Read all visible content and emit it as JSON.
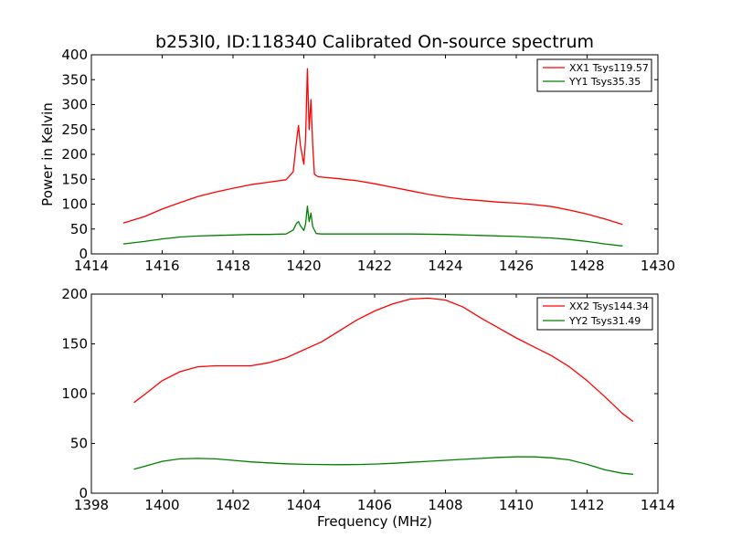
{
  "chart_data": [
    {
      "type": "line",
      "title": "b253l0, ID:118340 Calibrated On-source spectrum",
      "xlabel": "",
      "ylabel": "Power in Kelvin",
      "xlim": [
        1414,
        1430
      ],
      "ylim": [
        0,
        400
      ],
      "xticks": [
        "1414",
        "1416",
        "1418",
        "1420",
        "1422",
        "1424",
        "1426",
        "1428",
        "1430"
      ],
      "yticks": [
        "0",
        "50",
        "100",
        "150",
        "200",
        "250",
        "300",
        "350",
        "400"
      ],
      "legend_position": "top-right",
      "series": [
        {
          "name": "XX1 Tsys119.57",
          "color": "#ff0000",
          "points": [
            [
              1414.9,
              62
            ],
            [
              1415.5,
              75
            ],
            [
              1416,
              90
            ],
            [
              1416.5,
              103
            ],
            [
              1417,
              115
            ],
            [
              1417.5,
              124
            ],
            [
              1418,
              132
            ],
            [
              1418.5,
              139
            ],
            [
              1419,
              144
            ],
            [
              1419.5,
              149
            ],
            [
              1419.7,
              165
            ],
            [
              1419.8,
              230
            ],
            [
              1419.85,
              258
            ],
            [
              1419.9,
              220
            ],
            [
              1420.0,
              180
            ],
            [
              1420.05,
              230
            ],
            [
              1420.1,
              372
            ],
            [
              1420.15,
              250
            ],
            [
              1420.2,
              310
            ],
            [
              1420.25,
              220
            ],
            [
              1420.3,
              160
            ],
            [
              1420.4,
              155
            ],
            [
              1421,
              151
            ],
            [
              1421.5,
              147
            ],
            [
              1422,
              141
            ],
            [
              1422.5,
              134
            ],
            [
              1423,
              127
            ],
            [
              1423.5,
              120
            ],
            [
              1424,
              114
            ],
            [
              1424.5,
              110
            ],
            [
              1425,
              107
            ],
            [
              1425.5,
              104
            ],
            [
              1426,
              102
            ],
            [
              1426.5,
              99
            ],
            [
              1427,
              95
            ],
            [
              1427.5,
              88
            ],
            [
              1428,
              80
            ],
            [
              1428.5,
              70
            ],
            [
              1429,
              59
            ]
          ]
        },
        {
          "name": "YY1 Tsys35.35",
          "color": "#008000",
          "points": [
            [
              1414.9,
              20
            ],
            [
              1415.5,
              25
            ],
            [
              1416,
              30
            ],
            [
              1416.5,
              34
            ],
            [
              1417,
              36
            ],
            [
              1417.5,
              37
            ],
            [
              1418,
              38
            ],
            [
              1418.5,
              39
            ],
            [
              1419,
              39
            ],
            [
              1419.5,
              40
            ],
            [
              1419.7,
              48
            ],
            [
              1419.8,
              62
            ],
            [
              1419.85,
              65
            ],
            [
              1419.9,
              57
            ],
            [
              1420.0,
              47
            ],
            [
              1420.05,
              60
            ],
            [
              1420.1,
              96
            ],
            [
              1420.15,
              65
            ],
            [
              1420.2,
              82
            ],
            [
              1420.25,
              55
            ],
            [
              1420.35,
              41
            ],
            [
              1420.5,
              40
            ],
            [
              1421,
              40
            ],
            [
              1422,
              40
            ],
            [
              1423,
              40
            ],
            [
              1424,
              39
            ],
            [
              1425,
              37
            ],
            [
              1426,
              35
            ],
            [
              1427,
              32
            ],
            [
              1427.5,
              29
            ],
            [
              1428,
              25
            ],
            [
              1428.5,
              20
            ],
            [
              1429,
              16
            ]
          ]
        }
      ]
    },
    {
      "type": "line",
      "title": "",
      "xlabel": "Frequency (MHz)",
      "ylabel": "",
      "xlim": [
        1398,
        1414
      ],
      "ylim": [
        0,
        200
      ],
      "xticks": [
        "1398",
        "1400",
        "1402",
        "1404",
        "1406",
        "1408",
        "1410",
        "1412",
        "1414"
      ],
      "yticks": [
        "0",
        "50",
        "100",
        "150",
        "200"
      ],
      "legend_position": "top-right",
      "series": [
        {
          "name": "XX2 Tsys144.34",
          "color": "#ff0000",
          "points": [
            [
              1399.2,
              91
            ],
            [
              1399.5,
              99
            ],
            [
              1400,
              113
            ],
            [
              1400.5,
              122
            ],
            [
              1401,
              127
            ],
            [
              1401.5,
              128
            ],
            [
              1402,
              128
            ],
            [
              1402.5,
              128
            ],
            [
              1403,
              131
            ],
            [
              1403.5,
              136
            ],
            [
              1404,
              144
            ],
            [
              1404.5,
              152
            ],
            [
              1405,
              163
            ],
            [
              1405.5,
              174
            ],
            [
              1406,
              183
            ],
            [
              1406.5,
              190
            ],
            [
              1407,
              195
            ],
            [
              1407.5,
              196
            ],
            [
              1408,
              194
            ],
            [
              1408.5,
              187
            ],
            [
              1409,
              176
            ],
            [
              1409.5,
              166
            ],
            [
              1410,
              156
            ],
            [
              1410.5,
              147
            ],
            [
              1411,
              138
            ],
            [
              1411.5,
              127
            ],
            [
              1412,
              113
            ],
            [
              1412.5,
              97
            ],
            [
              1413,
              80
            ],
            [
              1413.3,
              72
            ]
          ]
        },
        {
          "name": "YY2 Tsys31.49",
          "color": "#008000",
          "points": [
            [
              1399.2,
              24
            ],
            [
              1399.5,
              27
            ],
            [
              1400,
              32
            ],
            [
              1400.5,
              34.5
            ],
            [
              1401,
              35
            ],
            [
              1401.5,
              34.5
            ],
            [
              1402,
              33
            ],
            [
              1402.5,
              31.5
            ],
            [
              1403,
              30.5
            ],
            [
              1403.5,
              29.5
            ],
            [
              1404,
              29
            ],
            [
              1404.5,
              28.8
            ],
            [
              1405,
              28.6
            ],
            [
              1405.5,
              28.8
            ],
            [
              1406,
              29.3
            ],
            [
              1406.5,
              30
            ],
            [
              1407,
              31
            ],
            [
              1407.5,
              32
            ],
            [
              1408,
              33
            ],
            [
              1408.5,
              34
            ],
            [
              1409,
              35
            ],
            [
              1409.5,
              36
            ],
            [
              1410,
              36.5
            ],
            [
              1410.5,
              36.5
            ],
            [
              1411,
              35.5
            ],
            [
              1411.5,
              33.5
            ],
            [
              1412,
              29
            ],
            [
              1412.5,
              23.5
            ],
            [
              1413,
              20
            ],
            [
              1413.3,
              19
            ]
          ]
        }
      ]
    }
  ]
}
